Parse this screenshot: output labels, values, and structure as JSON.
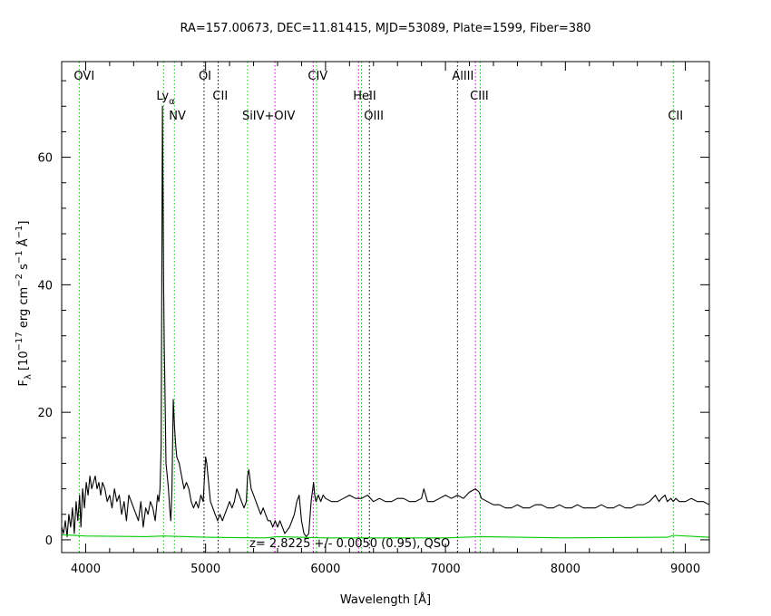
{
  "chart_data": {
    "type": "line",
    "title": "RA=157.00673, DEC=11.81415, MJD=53089, Plate=1599, Fiber=380",
    "xlabel": "Wavelength [Å]",
    "ylabel": "F_λ [10^-17 erg cm^-2 s^-1 Å^-1]",
    "xlim": [
      3800,
      9200
    ],
    "ylim": [
      -2,
      75
    ],
    "grid": false,
    "x_ticks": [
      4000,
      5000,
      6000,
      7000,
      8000,
      9000
    ],
    "y_ticks": [
      0,
      20,
      40,
      60
    ],
    "annotation": "z=  2.8225 +/- 0.0050 (0.95), QSO",
    "colors": {
      "spectrum": "#000000",
      "error": "#00cc00",
      "emission": "#00cc00",
      "absorption": "#cc00cc",
      "sky": "#000000"
    },
    "series": [
      {
        "name": "",
        "role": "spectrum",
        "x": [
          3800,
          3815,
          3830,
          3845,
          3860,
          3875,
          3890,
          3905,
          3920,
          3935,
          3950,
          3960,
          3975,
          3990,
          4005,
          4020,
          4035,
          4050,
          4065,
          4080,
          4095,
          4110,
          4125,
          4140,
          4160,
          4180,
          4200,
          4220,
          4240,
          4260,
          4280,
          4300,
          4320,
          4340,
          4360,
          4380,
          4400,
          4420,
          4440,
          4460,
          4480,
          4500,
          4520,
          4540,
          4560,
          4580,
          4600,
          4610,
          4620,
          4630,
          4640,
          4645,
          4650,
          4655,
          4660,
          4665,
          4670,
          4680,
          4690,
          4700,
          4710,
          4720,
          4730,
          4740,
          4750,
          4760,
          4780,
          4800,
          4820,
          4840,
          4860,
          4880,
          4900,
          4920,
          4940,
          4960,
          4980,
          5000,
          5010,
          5020,
          5040,
          5060,
          5080,
          5100,
          5120,
          5140,
          5160,
          5180,
          5200,
          5220,
          5240,
          5260,
          5280,
          5300,
          5320,
          5340,
          5350,
          5360,
          5380,
          5400,
          5420,
          5440,
          5460,
          5480,
          5500,
          5520,
          5540,
          5560,
          5580,
          5600,
          5620,
          5640,
          5660,
          5680,
          5700,
          5720,
          5740,
          5760,
          5780,
          5800,
          5820,
          5840,
          5860,
          5880,
          5900,
          5910,
          5920,
          5940,
          5960,
          5980,
          6000,
          6050,
          6100,
          6150,
          6200,
          6250,
          6300,
          6350,
          6400,
          6450,
          6500,
          6550,
          6600,
          6650,
          6700,
          6750,
          6800,
          6820,
          6850,
          6900,
          6950,
          7000,
          7050,
          7100,
          7150,
          7200,
          7250,
          7280,
          7300,
          7350,
          7400,
          7450,
          7500,
          7550,
          7600,
          7650,
          7700,
          7750,
          7800,
          7850,
          7900,
          7950,
          8000,
          8050,
          8100,
          8150,
          8200,
          8250,
          8300,
          8350,
          8400,
          8450,
          8500,
          8550,
          8600,
          8650,
          8700,
          8750,
          8780,
          8800,
          8830,
          8850,
          8880,
          8900,
          8920,
          8950,
          9000,
          9050,
          9100,
          9150,
          9200
        ],
        "y": [
          2,
          1,
          3,
          0.5,
          4,
          2,
          5,
          1,
          6,
          3,
          7,
          2,
          8,
          5,
          9,
          7,
          10,
          8,
          9,
          10,
          8,
          9,
          7,
          9,
          8,
          6,
          7,
          5,
          8,
          6,
          7,
          4,
          6,
          3,
          7,
          6,
          5,
          4,
          3,
          6,
          2,
          5,
          4,
          6,
          5,
          3,
          7,
          6,
          8,
          15,
          68,
          55,
          40,
          30,
          25,
          18,
          12,
          10,
          8,
          5,
          3,
          8,
          22,
          18,
          15,
          13,
          12,
          10,
          8,
          9,
          8,
          6,
          5,
          6,
          5,
          7,
          6,
          13,
          12,
          10,
          6,
          5,
          4,
          3,
          4,
          3,
          4,
          5,
          6,
          5,
          6,
          8,
          7,
          6,
          5,
          6,
          10,
          11,
          8,
          7,
          6,
          5,
          4,
          5,
          4,
          3,
          3,
          2,
          3,
          2,
          3,
          2,
          1,
          1.5,
          2,
          3,
          4,
          6,
          7,
          3,
          1,
          0.5,
          1,
          6,
          9,
          7,
          6,
          7,
          6,
          7,
          6.5,
          6,
          6,
          6.5,
          7,
          6.5,
          6.5,
          7,
          6,
          6.5,
          6,
          6,
          6.5,
          6.5,
          6,
          6,
          6.5,
          8,
          6,
          6,
          6.5,
          7,
          6.5,
          7,
          6.5,
          7.5,
          8,
          7.5,
          6.5,
          6,
          5.5,
          5.5,
          5,
          5,
          5.5,
          5,
          5,
          5.5,
          5.5,
          5,
          5,
          5.5,
          5,
          5,
          5.5,
          5,
          5,
          5,
          5.5,
          5,
          5,
          5.5,
          5,
          5,
          5.5,
          5.5,
          6,
          7,
          6,
          6.5,
          7,
          6,
          6.5,
          6,
          6.5,
          6,
          6,
          6.5,
          6,
          6,
          5.5
        ]
      },
      {
        "name": "",
        "role": "error",
        "x": [
          3800,
          4000,
          4500,
          4650,
          5000,
          5500,
          5600,
          6000,
          7000,
          7300,
          8000,
          8850,
          8900,
          9200
        ],
        "y": [
          0.8,
          0.6,
          0.5,
          0.6,
          0.4,
          0.3,
          0.5,
          0.3,
          0.3,
          0.5,
          0.3,
          0.4,
          0.7,
          0.4
        ]
      }
    ],
    "lines": [
      {
        "label": "OVI",
        "wavelength": 3947,
        "type": "emission"
      },
      {
        "label": "Ly_α",
        "wavelength": 4650,
        "type": "emission"
      },
      {
        "label": "NV",
        "wavelength": 4740,
        "type": "emission"
      },
      {
        "label": "OI",
        "wavelength": 4987,
        "type": "sky"
      },
      {
        "label": "CII",
        "wavelength": 5104,
        "type": "sky"
      },
      {
        "label": "SiIV+OIV",
        "wavelength": 5350,
        "type": "emission"
      },
      {
        "label": "",
        "wavelength": 5578,
        "type": "absorption"
      },
      {
        "label": "CIV",
        "wavelength": 5898,
        "type": "absorption"
      },
      {
        "label": "",
        "wavelength": 5925,
        "type": "emission"
      },
      {
        "label": "HeII",
        "wavelength": 6275,
        "type": "absorption"
      },
      {
        "label": "",
        "wavelength": 6300,
        "type": "emission"
      },
      {
        "label": "OIII",
        "wavelength": 6366,
        "type": "sky"
      },
      {
        "label": "AlIII",
        "wavelength": 7100,
        "type": "sky"
      },
      {
        "label": "CIII",
        "wavelength": 7250,
        "type": "absorption"
      },
      {
        "label": "",
        "wavelength": 7290,
        "type": "emission"
      },
      {
        "label": "CII",
        "wavelength": 8900,
        "type": "emission"
      }
    ]
  }
}
